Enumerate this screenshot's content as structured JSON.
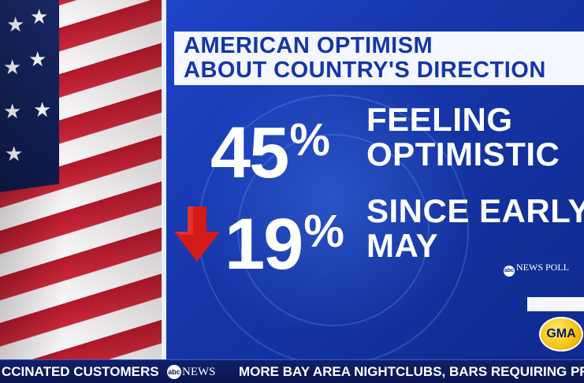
{
  "graphic": {
    "headline_line_1": "AMERICAN OPTIMISM",
    "headline_line_2": "ABOUT COUNTRY'S DIRECTION",
    "stat_1": {
      "number": "45",
      "percent_sign": "%",
      "label_line_1": "FEELING",
      "label_line_2": "OPTIMISTIC"
    },
    "stat_2": {
      "number": "19",
      "percent_sign": "%",
      "label_line_1": "SINCE EARLY",
      "label_line_2": "MAY",
      "trend_icon": "down-arrow-icon"
    },
    "poll_credit": {
      "abc_mark": "abc",
      "text": "NEWS POLL"
    }
  },
  "logo": {
    "text": "GMA"
  },
  "ticker": {
    "left_text": "CCINATED CUSTOMERS",
    "brand_abc": "abc",
    "brand_news": "NEWS",
    "right_text": "MORE BAY AREA NIGHTCLUBS, BARS REQUIRING PROOF"
  },
  "colors": {
    "headline_text": "#1536a8",
    "panel_blue": "#1f44c8",
    "arrow_red": "#d51a1a",
    "logo_yellow": "#f4c10f",
    "ticker_bg": "#10206a"
  }
}
